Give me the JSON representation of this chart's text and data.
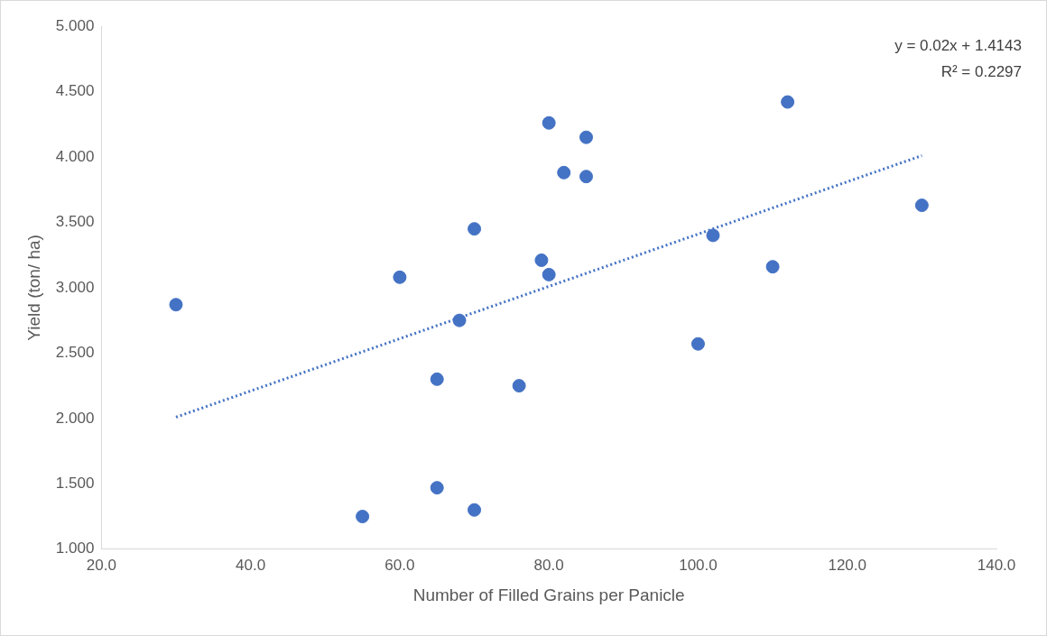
{
  "chart_data": {
    "type": "scatter",
    "xlabel": "Number of Filled Grains per Panicle",
    "ylabel": "Yield (ton/ ha)",
    "annotations": [
      "y = 0.02x + 1.4143",
      "R² = 0.2297"
    ],
    "series": [
      {
        "color": "#4472c4",
        "marker": "circle",
        "x": [
          30,
          60,
          55,
          65,
          65,
          68,
          70,
          70,
          76,
          79,
          80,
          80,
          82,
          85,
          85,
          100,
          102,
          110,
          112,
          130
        ],
        "values": [
          2.87,
          3.08,
          1.25,
          2.3,
          1.47,
          2.75,
          3.45,
          1.3,
          2.25,
          3.21,
          4.26,
          3.1,
          3.88,
          4.15,
          3.85,
          2.57,
          3.4,
          3.16,
          4.42,
          3.63
        ]
      },
      {
        "type": "line",
        "color": "#4472c4",
        "line_style": "dotted",
        "marker": "none",
        "x": [
          30,
          130
        ],
        "values": [
          2.01,
          4.01
        ]
      }
    ],
    "xlim": [
      20,
      140
    ],
    "xticks": [
      {
        "value": 20,
        "label": "20.0"
      },
      {
        "value": 40,
        "label": "40.0"
      },
      {
        "value": 60,
        "label": "60.0"
      },
      {
        "value": 80,
        "label": "80.0"
      },
      {
        "value": 100,
        "label": "100.0"
      },
      {
        "value": 120,
        "label": "120.0"
      },
      {
        "value": 140,
        "label": "140.0"
      }
    ],
    "ylim": [
      1,
      5
    ],
    "yticks": [
      {
        "value": 1,
        "label": "1.000"
      },
      {
        "value": 1.5,
        "label": "1.500"
      },
      {
        "value": 2,
        "label": "2.000"
      },
      {
        "value": 2.5,
        "label": "2.500"
      },
      {
        "value": 3,
        "label": "3.000"
      },
      {
        "value": 3.5,
        "label": "3.500"
      },
      {
        "value": 4,
        "label": "4.000"
      },
      {
        "value": 4.5,
        "label": "4.500"
      },
      {
        "value": 5,
        "label": "5.000"
      }
    ],
    "grid": false,
    "legend": false
  }
}
